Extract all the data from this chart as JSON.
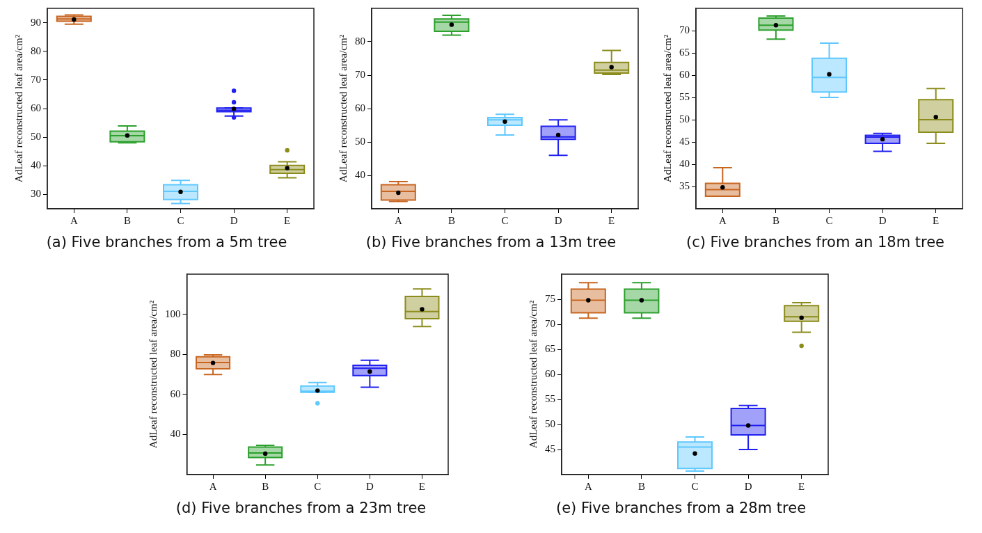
{
  "chart_data": [
    {
      "type": "box",
      "title": "(a) Five branches from a 5m tree",
      "ylabel": "AdLeaf reconstructed leaf area/cm²",
      "categories": [
        "A",
        "B",
        "C",
        "D",
        "E"
      ],
      "colors": [
        "#c8651f",
        "#2ca02c",
        "#5ec8ff",
        "#2020f0",
        "#8c8c1c"
      ],
      "ylim": [
        25,
        95
      ],
      "yticks": [
        30,
        40,
        50,
        60,
        70,
        80,
        90
      ],
      "grid": false,
      "legend": false,
      "boxes": [
        {
          "low": 89.5,
          "q1": 90.5,
          "median": 91.3,
          "q3": 92.2,
          "high": 92.7,
          "mean": 91.1
        },
        {
          "low": 48,
          "q1": 48.4,
          "median": 50.5,
          "q3": 52.1,
          "high": 53.9,
          "mean": 50.6
        },
        {
          "low": 26.8,
          "q1": 28.2,
          "median": 31.1,
          "q3": 33.4,
          "high": 34.9,
          "mean": 30.9
        },
        {
          "low": 57.4,
          "q1": 58.9,
          "median": 59.4,
          "q3": 60.2,
          "high": 60.2,
          "mean": 59.9,
          "outliers": [
            66.2,
            62.2,
            56.9
          ]
        },
        {
          "low": 35.8,
          "q1": 37.4,
          "median": 38.7,
          "q3": 40.1,
          "high": 41.4,
          "mean": 39.2,
          "outliers": [
            45.4
          ]
        }
      ]
    },
    {
      "type": "box",
      "title": "(b) Five branches from a 13m tree",
      "ylabel": "AdLeaf reconstructed leaf area/cm²",
      "categories": [
        "A",
        "B",
        "C",
        "D",
        "E"
      ],
      "colors": [
        "#c8651f",
        "#2ca02c",
        "#5ec8ff",
        "#2020f0",
        "#8c8c1c"
      ],
      "ylim": [
        30,
        90
      ],
      "yticks": [
        40,
        50,
        60,
        70,
        80
      ],
      "grid": false,
      "legend": false,
      "boxes": [
        {
          "low": 32.2,
          "q1": 32.6,
          "median": 35.2,
          "q3": 37.2,
          "high": 38.1,
          "mean": 34.8
        },
        {
          "low": 82,
          "q1": 83.1,
          "median": 85.9,
          "q3": 86.8,
          "high": 87.9,
          "mean": 85.1
        },
        {
          "low": 52.1,
          "q1": 55,
          "median": 56.6,
          "q3": 57.3,
          "high": 58.3,
          "mean": 56.1
        },
        {
          "low": 46,
          "q1": 50.8,
          "median": 51.5,
          "q3": 54.7,
          "high": 56.6,
          "mean": 52.1
        },
        {
          "low": 70.2,
          "q1": 70.6,
          "median": 71.5,
          "q3": 73.8,
          "high": 77.4,
          "mean": 72.4
        }
      ]
    },
    {
      "type": "box",
      "title": "(c) Five branches from an 18m tree",
      "ylabel": "AdLeaf reconstructed leaf area/cm²",
      "categories": [
        "A",
        "B",
        "C",
        "D",
        "E"
      ],
      "colors": [
        "#c8651f",
        "#2ca02c",
        "#5ec8ff",
        "#2020f0",
        "#8c8c1c"
      ],
      "ylim": [
        30,
        75
      ],
      "yticks": [
        35,
        40,
        45,
        50,
        55,
        60,
        65,
        70
      ],
      "grid": false,
      "legend": false,
      "boxes": [
        {
          "low": 32.8,
          "q1": 32.8,
          "median": 34.3,
          "q3": 35.7,
          "high": 39.2,
          "mean": 34.8
        },
        {
          "low": 68.1,
          "q1": 70.1,
          "median": 71.2,
          "q3": 72.8,
          "high": 73.3,
          "mean": 71.2
        },
        {
          "low": 55,
          "q1": 56.2,
          "median": 59.5,
          "q3": 63.8,
          "high": 67.2,
          "mean": 60.2
        },
        {
          "low": 42.9,
          "q1": 44.7,
          "median": 46.1,
          "q3": 46.5,
          "high": 46.9,
          "mean": 45.6
        },
        {
          "low": 44.7,
          "q1": 47.2,
          "median": 50,
          "q3": 54.5,
          "high": 57,
          "mean": 50.6
        }
      ]
    },
    {
      "type": "box",
      "title": "(d) Five branches from a 23m tree",
      "ylabel": "AdLeaf reconstructed leaf area/cm²",
      "categories": [
        "A",
        "B",
        "C",
        "D",
        "E"
      ],
      "colors": [
        "#c8651f",
        "#2ca02c",
        "#5ec8ff",
        "#2020f0",
        "#8c8c1c"
      ],
      "ylim": [
        20,
        120
      ],
      "yticks": [
        40,
        60,
        80,
        100
      ],
      "grid": false,
      "legend": false,
      "boxes": [
        {
          "low": 69.9,
          "q1": 72.8,
          "median": 75.9,
          "q3": 78.8,
          "high": 79.7,
          "mean": 75.7
        },
        {
          "low": 24.8,
          "q1": 28.5,
          "median": 30.8,
          "q3": 33.7,
          "high": 34.6,
          "mean": 30.4
        },
        {
          "low": 61.1,
          "q1": 61.1,
          "median": 61.6,
          "q3": 64.2,
          "high": 65.9,
          "mean": 61.9,
          "outliers": [
            55.6
          ]
        },
        {
          "low": 63.6,
          "q1": 69.4,
          "median": 73,
          "q3": 74.5,
          "high": 77,
          "mean": 71.4
        },
        {
          "low": 93.9,
          "q1": 97.8,
          "median": 101.3,
          "q3": 108.9,
          "high": 112.6,
          "mean": 102.5
        }
      ]
    },
    {
      "type": "box",
      "title": "(e) Five branches from a 28m tree",
      "ylabel": "AdLeaf reconstructed leaf area/cm²",
      "categories": [
        "A",
        "B",
        "C",
        "D",
        "E"
      ],
      "colors": [
        "#c8651f",
        "#2ca02c",
        "#5ec8ff",
        "#2020f0",
        "#8c8c1c"
      ],
      "ylim": [
        40,
        80
      ],
      "yticks": [
        45,
        50,
        55,
        60,
        65,
        70,
        75
      ],
      "grid": false,
      "legend": false,
      "boxes": [
        {
          "low": 71.2,
          "q1": 72.3,
          "median": 74.8,
          "q3": 77,
          "high": 78.3,
          "mean": 74.8
        },
        {
          "low": 71.2,
          "q1": 72.3,
          "median": 74.8,
          "q3": 77,
          "high": 78.3,
          "mean": 74.8
        },
        {
          "low": 40.7,
          "q1": 41.2,
          "median": 45.5,
          "q3": 46.5,
          "high": 47.5,
          "mean": 44.2
        },
        {
          "low": 45,
          "q1": 47.9,
          "median": 49.8,
          "q3": 53.2,
          "high": 53.8,
          "mean": 49.8
        },
        {
          "low": 68.4,
          "q1": 70.6,
          "median": 71.5,
          "q3": 73.7,
          "high": 74.3,
          "mean": 71.3,
          "outliers": [
            65.7
          ]
        }
      ]
    }
  ]
}
